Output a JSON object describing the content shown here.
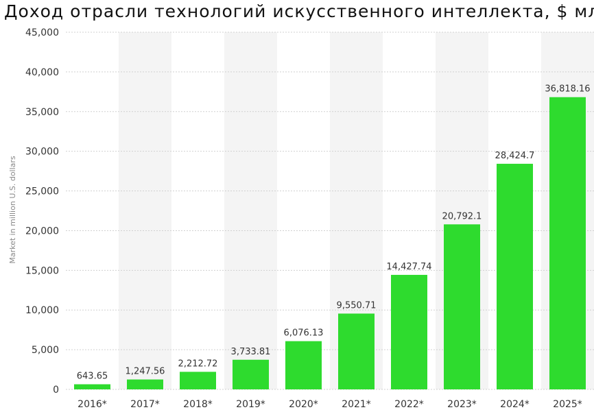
{
  "chart_data": {
    "type": "bar",
    "title": "Доход отрасли технологий искусственного интеллекта, $ млн",
    "xlabel": "",
    "ylabel": "Market in million U.S. dollars",
    "categories": [
      "2016*",
      "2017*",
      "2018*",
      "2019*",
      "2020*",
      "2021*",
      "2022*",
      "2023*",
      "2024*",
      "2025*"
    ],
    "values": [
      643.65,
      1247.56,
      2212.72,
      3733.81,
      6076.13,
      9550.71,
      14427.74,
      20792.1,
      28424.7,
      36818.16
    ],
    "value_labels": [
      "643.65",
      "1,247.56",
      "2,212.72",
      "3,733.81",
      "6,076.13",
      "9,550.71",
      "14,427.74",
      "20,792.1",
      "28,424.7",
      "36,818.16"
    ],
    "ylim": [
      0,
      45000
    ],
    "yticks": [
      0,
      5000,
      10000,
      15000,
      20000,
      25000,
      30000,
      35000,
      40000,
      45000
    ],
    "ytick_labels": [
      "0",
      "5,000",
      "10,000",
      "15,000",
      "20,000",
      "25,000",
      "30,000",
      "35,000",
      "40,000",
      "45,000"
    ],
    "grid": true,
    "colors": {
      "bar": "#2edb2e",
      "band": "#f4f4f4",
      "grid": "#d0d0d0"
    }
  }
}
